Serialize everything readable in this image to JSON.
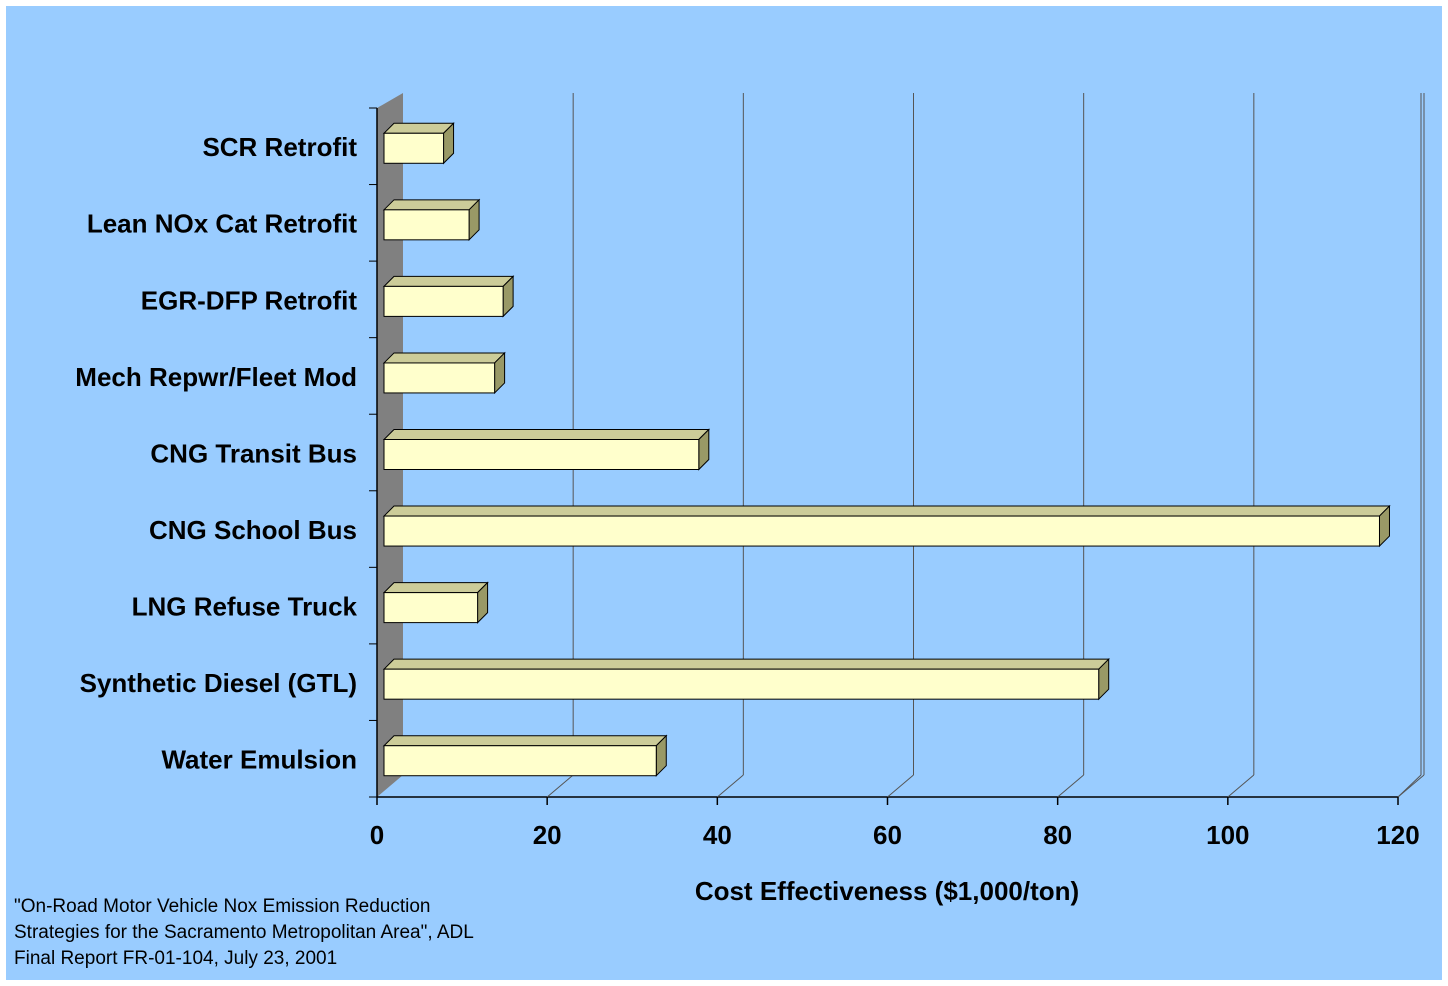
{
  "chart_data": {
    "type": "bar3d_horizontal",
    "categories": [
      "SCR Retrofit",
      "Lean NOx Cat Retrofit",
      "EGR-DFP Retrofit",
      "Mech Repwr/Fleet Mod",
      "CNG Transit Bus",
      "CNG School Bus",
      "LNG Refuse Truck",
      "Synthetic Diesel (GTL)",
      "Water Emulsion"
    ],
    "values": [
      7,
      10,
      14,
      13,
      37,
      117,
      11,
      84,
      32
    ],
    "color": "#ffffcc",
    "xlim": [
      0,
      120
    ],
    "xticks": [
      0,
      20,
      40,
      60,
      80,
      100,
      120
    ],
    "grid": true,
    "x_label": "Cost Effectiveness ($1,000/ton)",
    "note": [
      "\"On-Road Motor Vehicle Nox Emission Reduction",
      "Strategies for the Sacramento Metropolitan Area\", ADL",
      "Final Report  FR-01-104, July 23, 2001"
    ]
  }
}
